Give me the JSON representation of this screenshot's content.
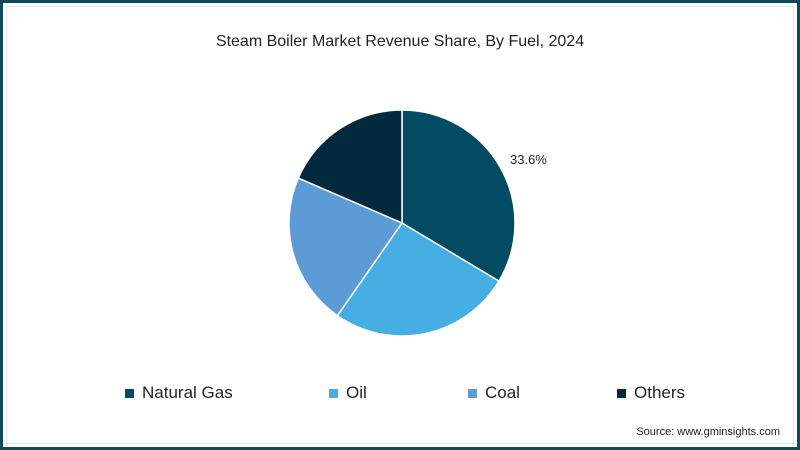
{
  "chart_data": {
    "type": "pie",
    "title": "Steam Boiler Market Revenue Share, By Fuel, 2024",
    "categories": [
      "Natural Gas",
      "Oil",
      "Coal",
      "Others"
    ],
    "values": [
      33.6,
      26.1,
      21.8,
      18.5
    ],
    "colors": [
      "#034b62",
      "#46aee2",
      "#5c9bd5",
      "#022a3c"
    ],
    "data_labels": [
      "33.6%",
      "",
      "",
      ""
    ],
    "start_angle": "top, clockwise",
    "legend_position": "bottom",
    "source": "Source: www.gminsights.com"
  },
  "title": "Steam Boiler Market Revenue Share, By Fuel, 2024",
  "label_natural_gas": "33.6%",
  "legend": [
    {
      "label": "Natural Gas",
      "color": "#034b62"
    },
    {
      "label": "Oil",
      "color": "#46aee2"
    },
    {
      "label": "Coal",
      "color": "#5c9bd5"
    },
    {
      "label": "Others",
      "color": "#022a3c"
    }
  ],
  "source": "Source: www.gminsights.com",
  "frame_color": "#0e4a5c"
}
